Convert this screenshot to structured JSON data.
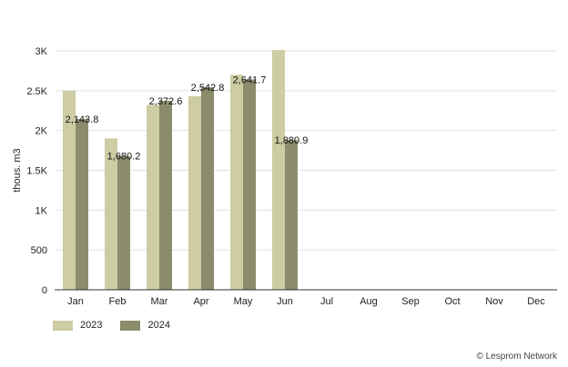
{
  "chart_data": {
    "type": "bar",
    "categories": [
      "Jan",
      "Feb",
      "Mar",
      "Apr",
      "May",
      "Jun",
      "Jul",
      "Aug",
      "Sep",
      "Oct",
      "Nov",
      "Dec"
    ],
    "series": [
      {
        "name": "2023",
        "color": "#cdcca3",
        "values": [
          2500,
          1900,
          2320,
          2430,
          2700,
          3010,
          null,
          null,
          null,
          null,
          null,
          null
        ],
        "labels": [
          "",
          "",
          "",
          "",
          "",
          "",
          "",
          "",
          "",
          "",
          "",
          ""
        ]
      },
      {
        "name": "2024",
        "color": "#8a8c6c",
        "values": [
          2143.8,
          1680.2,
          2372.6,
          2542.8,
          2641.7,
          1880.9,
          null,
          null,
          null,
          null,
          null,
          null
        ],
        "labels": [
          "2,143.8",
          "1,680.2",
          "2,372.6",
          "2,542.8",
          "2,641.7",
          "1,880.9",
          "",
          "",
          "",
          "",
          "",
          ""
        ]
      }
    ],
    "ylabel": "thous. m3",
    "ylim": [
      0,
      3000
    ],
    "yticks": [
      0,
      500,
      1000,
      1500,
      2000,
      2500,
      3000
    ],
    "ytick_labels": [
      "0",
      "500",
      "1K",
      "1.5K",
      "2K",
      "2.5K",
      "3K"
    ],
    "grid": true,
    "legend_position": "bottom-left"
  },
  "credit": "© Lesprom Network"
}
